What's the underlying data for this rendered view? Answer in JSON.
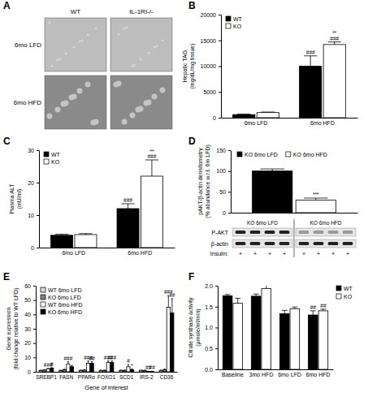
{
  "image_panel": {
    "panel": "A",
    "columns": [
      "WT",
      "IL-1RI-/-"
    ],
    "rows": [
      "6mo LFD",
      "6mo HFD"
    ]
  },
  "chart_data": [
    {
      "panel": "B",
      "type": "bar",
      "categories": [
        "6mo LFD",
        "6mo HFD"
      ],
      "y_label": [
        "Hepatic TAG",
        "(mg/dL/mg tissue)"
      ],
      "ylim": [
        0,
        20000
      ],
      "yticks": [
        0,
        5000,
        10000,
        15000,
        20000
      ],
      "legend": "top-left",
      "series": [
        {
          "name": "WT",
          "color": "#000000",
          "values": [
            600,
            10000
          ],
          "errors": [
            100,
            2000
          ],
          "annotations": [
            null,
            "###"
          ]
        },
        {
          "name": "KO",
          "color": "#ffffff",
          "values": [
            1000,
            14200
          ],
          "errors": [
            100,
            500
          ],
          "annotations": [
            null,
            [
              "**",
              "###"
            ]
          ]
        }
      ]
    },
    {
      "panel": "C",
      "type": "bar",
      "categories": [
        "6mo LFD",
        "6mo HFD"
      ],
      "y_label": [
        "Plasma ALT",
        "(mU/ml)"
      ],
      "ylim": [
        0,
        30
      ],
      "yticks": [
        0,
        10,
        20,
        30
      ],
      "legend": "top-left",
      "series": [
        {
          "name": "WT",
          "color": "#000000",
          "values": [
            3.8,
            12
          ],
          "errors": [
            0.3,
            1.5
          ],
          "annotations": [
            null,
            "###"
          ]
        },
        {
          "name": "KO",
          "color": "#ffffff",
          "values": [
            4.0,
            22
          ],
          "errors": [
            0.3,
            5
          ],
          "annotations": [
            null,
            [
              "**",
              "###"
            ]
          ]
        }
      ]
    },
    {
      "panel": "D",
      "type": "bar",
      "categories": [
        null
      ],
      "y_label": [
        "pAKT/β-actin densitometry",
        "(% abundance w.r.t. 6m LFD)"
      ],
      "ylim": [
        0,
        150
      ],
      "yticks": [
        0,
        50,
        100,
        150
      ],
      "legend": "top",
      "tick_labels": "y",
      "series": [
        {
          "name": "KO 6mo LFD",
          "color": "#000000",
          "values": [
            100
          ],
          "errors": [
            5
          ],
          "annotations": [
            null
          ]
        },
        {
          "name": "KO 6mo HFD",
          "color": "#ffffff",
          "values": [
            30
          ],
          "errors": [
            5
          ],
          "annotations": [
            "***"
          ]
        }
      ],
      "blot": {
        "groups": [
          "KO 6mo LFD",
          "KO 6mo HFD"
        ],
        "rows": [
          "P-AKT",
          "β-actin"
        ],
        "treatment_label": "Insulin:",
        "treatment": [
          [
            "+",
            "+",
            "+",
            "+"
          ],
          [
            "+",
            "+",
            "+",
            "+"
          ]
        ]
      }
    },
    {
      "panel": "E",
      "type": "bar",
      "categories": [
        "SREBP1",
        "FASN",
        "PPARα",
        "FOXO1",
        "SCD1",
        "IRS-2",
        "CD36"
      ],
      "y_label": [
        "Gene expression",
        "(fold change relative to WT LFD)"
      ],
      "x_label": "Gene of interest",
      "ylim": [
        0,
        60
      ],
      "yticks": [
        0,
        10,
        20,
        30,
        40,
        50,
        60
      ],
      "legend": "top-left",
      "series": [
        {
          "name": "WT 6mo LFD",
          "color": "#d9d9d9",
          "values": [
            1,
            1,
            1,
            1,
            1,
            1,
            1
          ],
          "errors": [
            0.1,
            0.1,
            0.2,
            0.1,
            0.2,
            0.1,
            0.2
          ],
          "annotations": [
            null,
            null,
            null,
            null,
            null,
            null,
            null
          ]
        },
        {
          "name": "KO 6mo LFD",
          "color": "#808080",
          "values": [
            1.2,
            1.5,
            1.2,
            1,
            1,
            1,
            1.5
          ],
          "errors": [
            0.2,
            0.3,
            0.3,
            0.2,
            0.2,
            0.1,
            0.4
          ],
          "annotations": [
            null,
            null,
            null,
            null,
            null,
            null,
            null
          ]
        },
        {
          "name": "WT 6mo HFD",
          "color": "#ffffff",
          "values": [
            2,
            5.5,
            6,
            6.5,
            3.5,
            0.3,
            45
          ],
          "errors": [
            0.3,
            1.5,
            1.5,
            1,
            1.5,
            0.1,
            8
          ],
          "annotations": [
            "###",
            "###",
            "###",
            "###",
            "#",
            "##",
            "###"
          ]
        },
        {
          "name": "KO 6mo HFD",
          "color": "#000000",
          "values": [
            2.5,
            3.5,
            6,
            6.5,
            1.5,
            0.3,
            41
          ],
          "errors": [
            0.4,
            0.8,
            1,
            1,
            0.4,
            0.1,
            10
          ],
          "annotations": [
            "#",
            null,
            "##",
            "###",
            "*",
            "##",
            "##"
          ]
        }
      ]
    },
    {
      "panel": "F",
      "type": "bar",
      "categories": [
        "Baseline",
        "3mo HFD",
        "6mo LFD",
        "6mo HFD"
      ],
      "y_label": [
        "Citrate synthase activity",
        "(μmole/ml/min)"
      ],
      "ylim": [
        0,
        2
      ],
      "yticks": [
        {
          "value": 0,
          "label": "0.0"
        },
        {
          "value": 0.5,
          "label": "0.5"
        },
        {
          "value": 1,
          "label": "1.0"
        },
        {
          "value": 1.5,
          "label": "1.5"
        },
        {
          "value": 2,
          "label": "2.0"
        }
      ],
      "legend": "right",
      "series": [
        {
          "name": "WT",
          "color": "#000000",
          "values": [
            1.76,
            1.75,
            1.33,
            1.3
          ],
          "errors": [
            0.03,
            0.05,
            0.08,
            0.1
          ],
          "annotations": [
            null,
            null,
            null,
            "##"
          ]
        },
        {
          "name": "KO",
          "color": "#ffffff",
          "values": [
            1.58,
            1.93,
            1.45,
            1.4
          ],
          "errors": [
            0.12,
            0.08,
            0.04,
            0.04
          ],
          "annotations": [
            null,
            null,
            null,
            "##"
          ]
        }
      ]
    }
  ]
}
